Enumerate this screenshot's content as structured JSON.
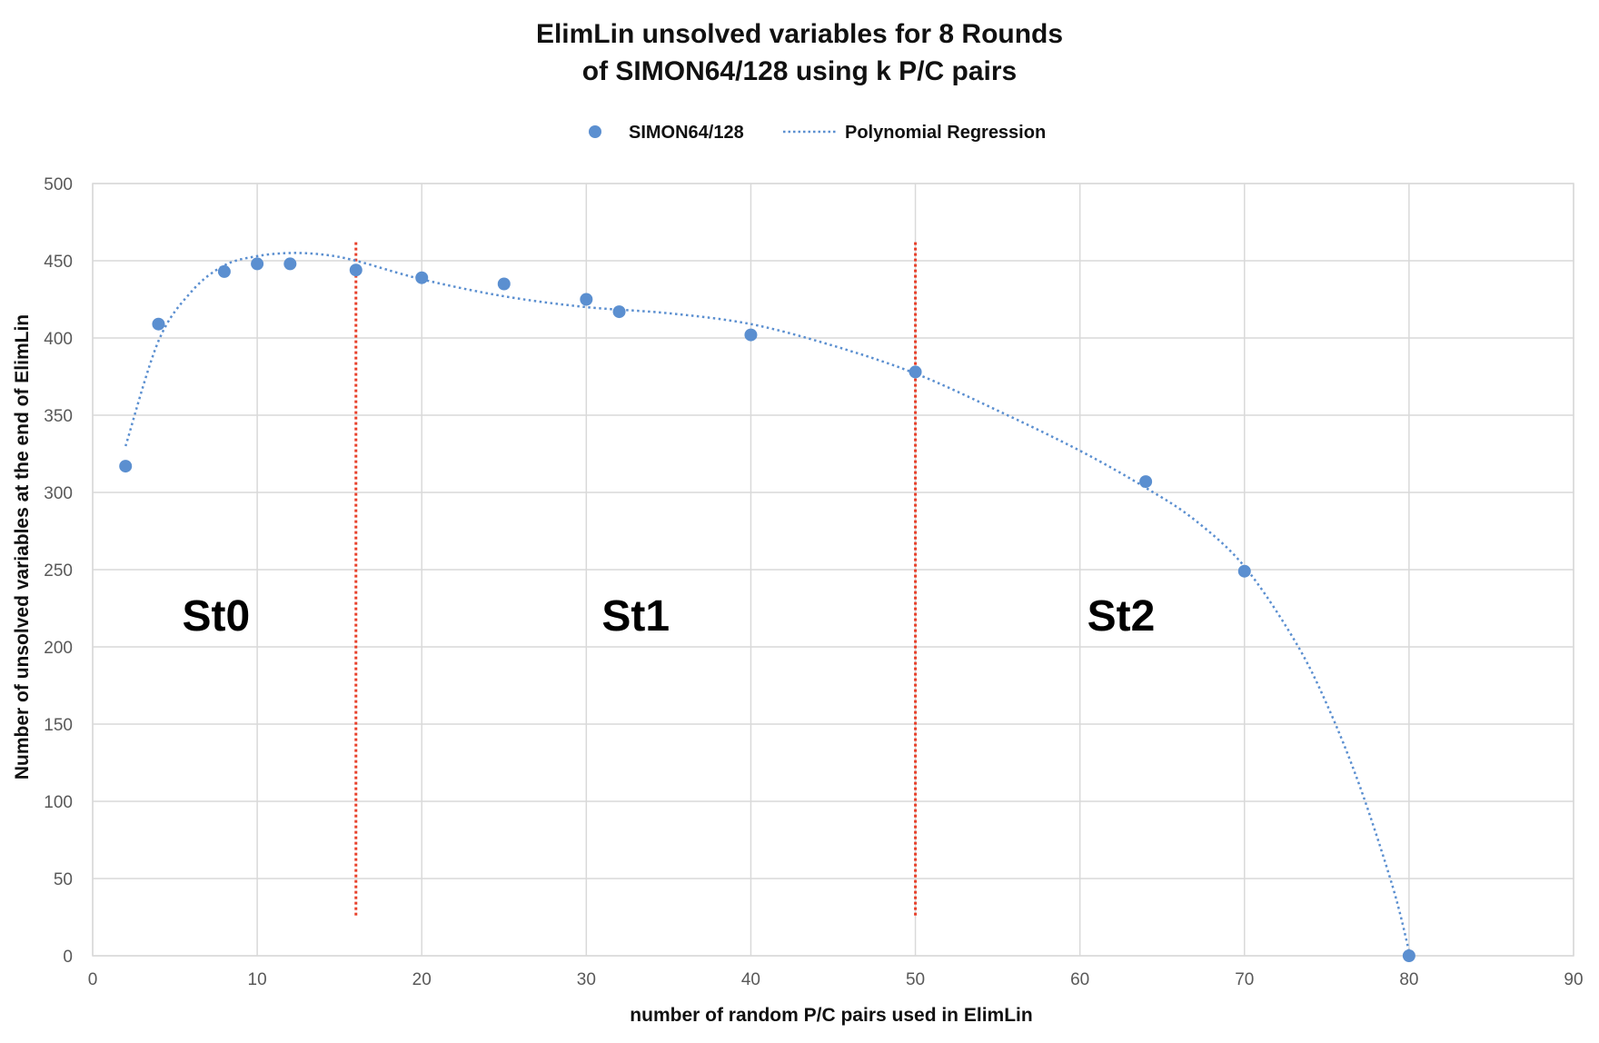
{
  "chart_data": {
    "type": "scatter",
    "title_lines": [
      "ElimLin unsolved variables for 8 Rounds",
      "of SIMON64/128 using k P/C pairs"
    ],
    "xlabel": "number of random P/C pairs used in ElimLin",
    "ylabel": "Number of unsolved variables at the end of ElimLin",
    "xlim": [
      0,
      90
    ],
    "ylim": [
      0,
      500
    ],
    "xticks": [
      0,
      10,
      20,
      30,
      40,
      50,
      60,
      70,
      80,
      90
    ],
    "yticks": [
      0,
      50,
      100,
      150,
      200,
      250,
      300,
      350,
      400,
      450,
      500
    ],
    "grid": true,
    "legend_position": "top-center",
    "legend": [
      "SIMON64/128",
      "Polynomial Regression"
    ],
    "series": [
      {
        "name": "SIMON64/128",
        "kind": "points",
        "color": "#5b8fd0",
        "x": [
          2,
          4,
          8,
          10,
          12,
          16,
          20,
          25,
          30,
          32,
          40,
          50,
          64,
          70,
          80
        ],
        "y": [
          317,
          409,
          443,
          448,
          448,
          444,
          439,
          435,
          425,
          417,
          402,
          378,
          307,
          249,
          0
        ]
      },
      {
        "name": "Polynomial Regression",
        "kind": "trendline",
        "style": "dotted",
        "color": "#5b8fd0",
        "x": [
          2,
          4,
          6,
          8,
          10,
          12,
          14,
          16,
          20,
          25,
          30,
          35,
          40,
          45,
          50,
          55,
          60,
          64,
          67,
          70,
          73,
          75,
          77,
          79,
          80
        ],
        "y": [
          330,
          398,
          430,
          447,
          453,
          455,
          454,
          450,
          438,
          427,
          420,
          416,
          409,
          395,
          377,
          353,
          327,
          303,
          282,
          252,
          205,
          163,
          110,
          45,
          3
        ]
      }
    ],
    "vertical_markers": [
      {
        "x": 16,
        "y_range": [
          25,
          462
        ],
        "color": "#e8402a",
        "style": "dotted"
      },
      {
        "x": 50,
        "y_range": [
          25,
          462
        ],
        "color": "#e8402a",
        "style": "dotted"
      }
    ],
    "annotations": [
      {
        "text": "St0",
        "x": 7.5,
        "y": 220
      },
      {
        "text": "St1",
        "x": 33,
        "y": 220
      },
      {
        "text": "St2",
        "x": 62.5,
        "y": 220
      }
    ]
  }
}
